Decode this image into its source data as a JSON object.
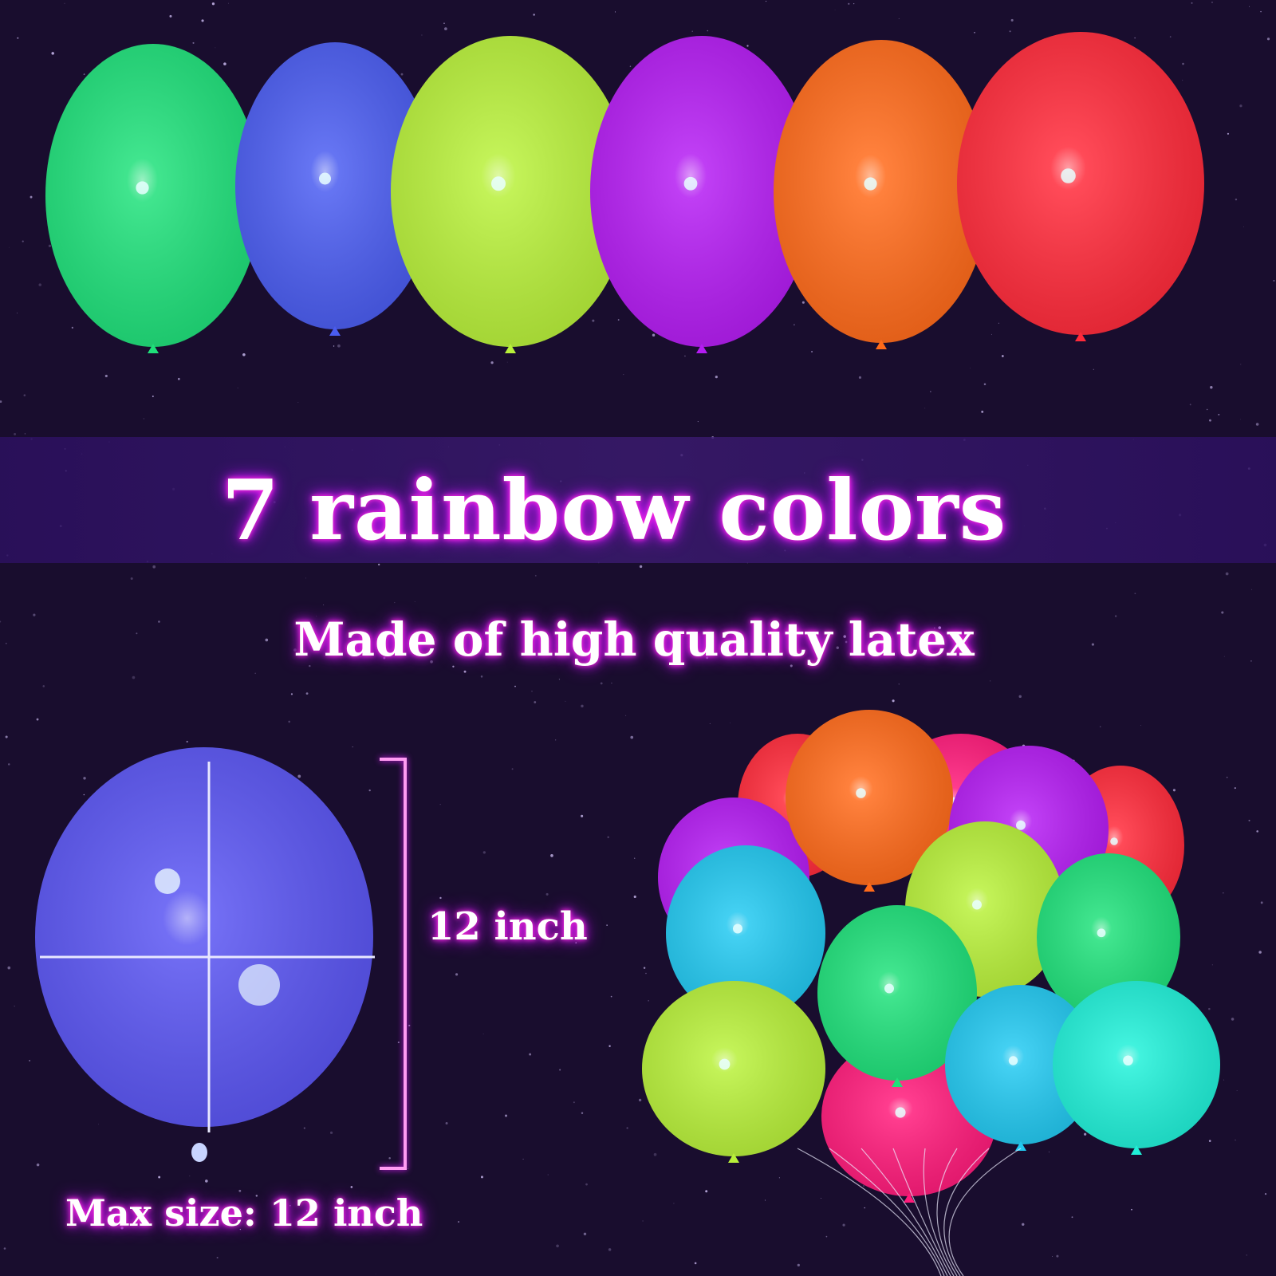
{
  "headline": "7 rainbow colors",
  "subline": "Made of high quality latex",
  "size_label": "12 inch",
  "max_size_label": "Max size: 12 inch",
  "colors": {
    "background": "#190d2e",
    "band": "#3a1a6e",
    "glow": "#e01cff",
    "balloons": [
      "#1fe07a",
      "#4a5cf0",
      "#b8f03a",
      "#b41cf2",
      "#ff6a1a",
      "#ff2a3a",
      "#ff1a7a",
      "#22c8f0",
      "#20f0d8"
    ]
  }
}
